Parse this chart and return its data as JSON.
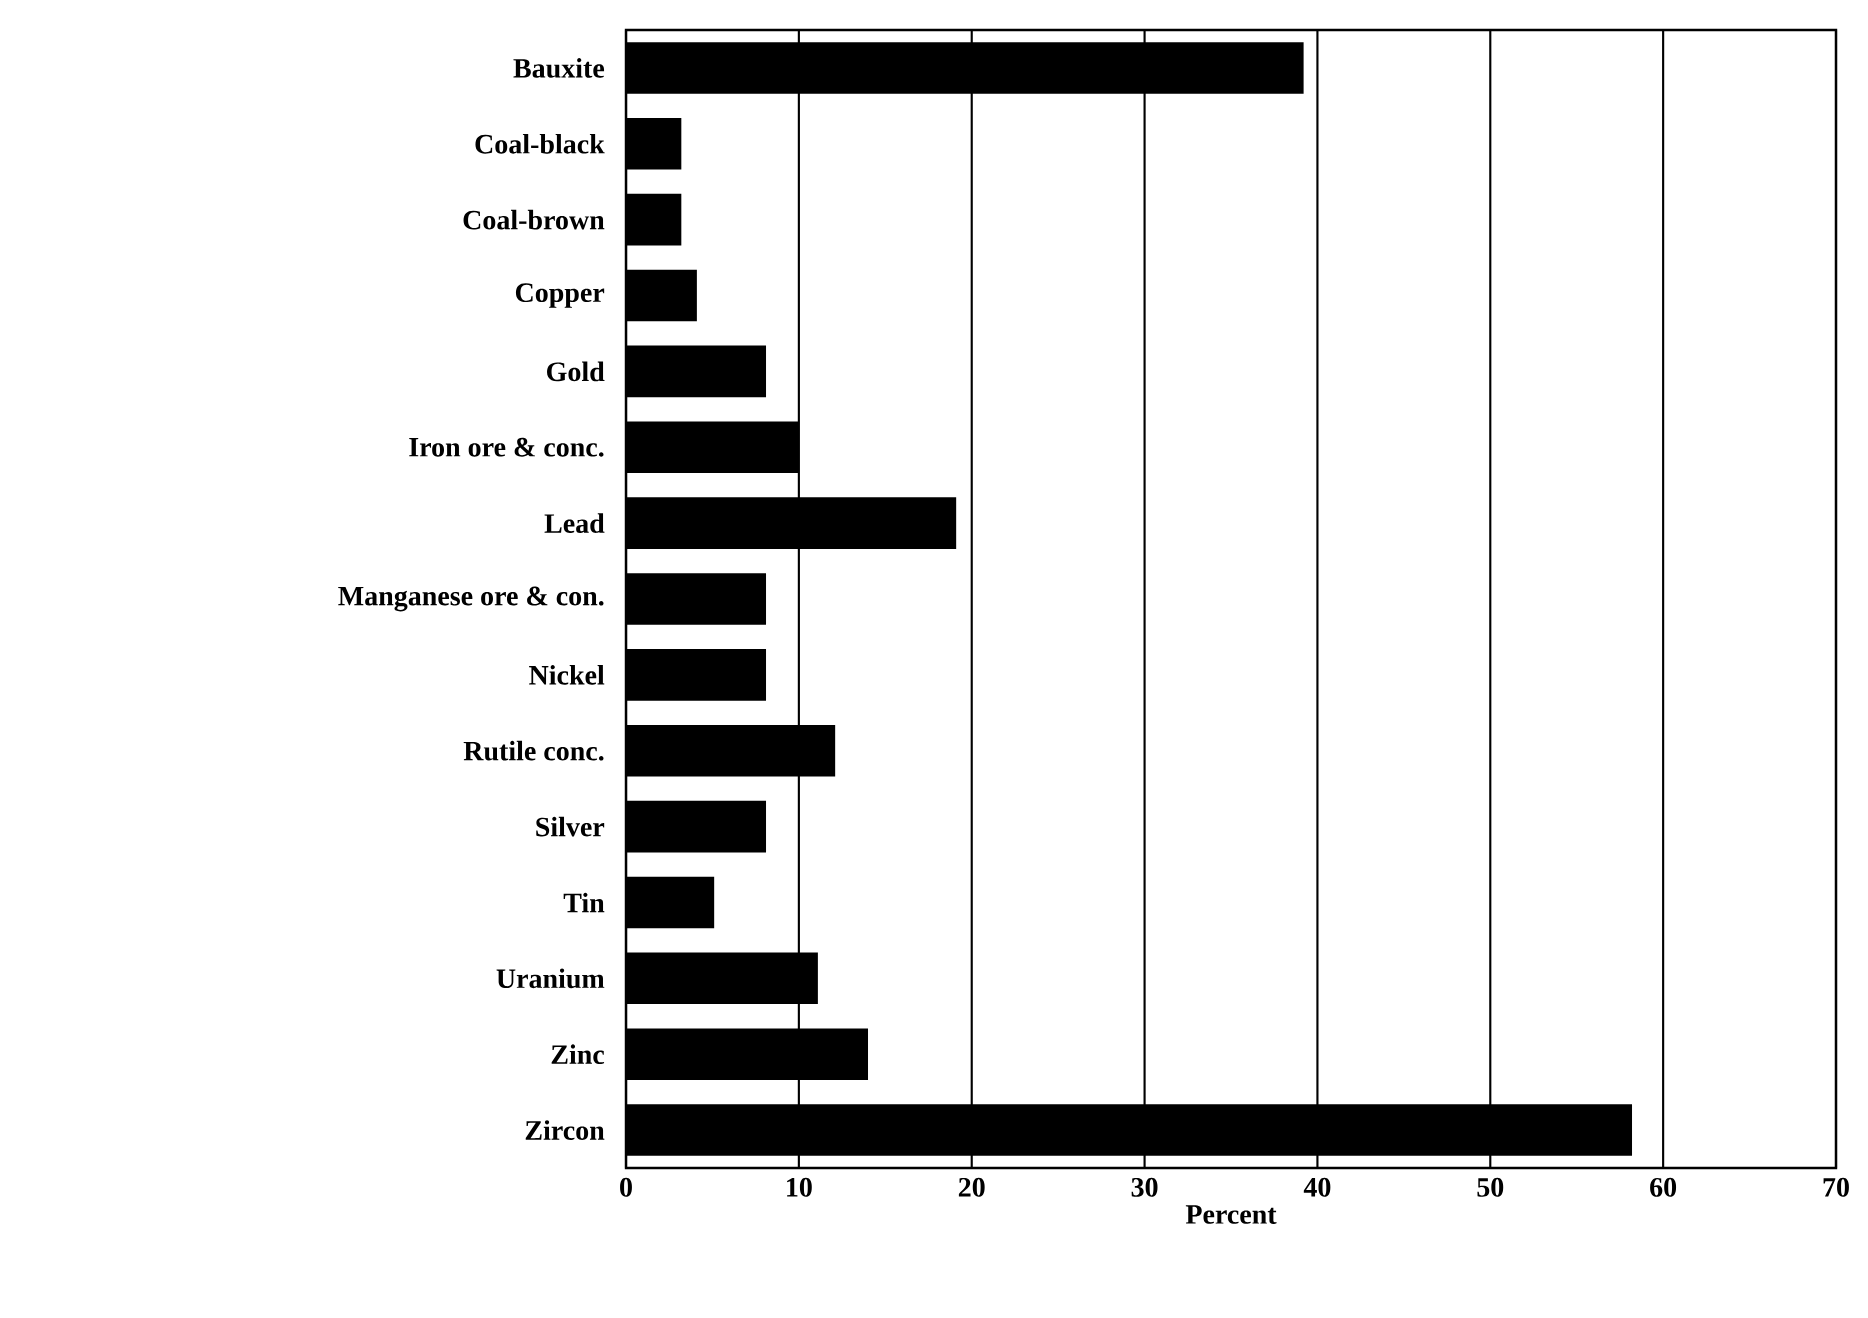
{
  "chart_data": {
    "type": "bar",
    "orientation": "horizontal",
    "xlabel": "Percent",
    "categories": [
      "Bauxite",
      "Coal-black",
      "Coal-brown",
      "Copper",
      "Gold",
      "Iron ore & conc.",
      "Lead",
      "Manganese ore & con.",
      "Nickel",
      "Rutile conc.",
      "Silver",
      "Tin",
      "Uranium",
      "Zinc",
      "Zircon"
    ],
    "values": [
      39.2,
      3.2,
      3.2,
      4.1,
      8.1,
      10.0,
      19.1,
      8.1,
      8.1,
      12.1,
      8.1,
      5.1,
      11.1,
      14.0,
      58.2
    ],
    "color": "#000000",
    "xlim": [
      0,
      70
    ],
    "xticks": [
      0,
      10,
      20,
      30,
      40,
      50,
      60,
      70
    ],
    "grid": "x"
  }
}
